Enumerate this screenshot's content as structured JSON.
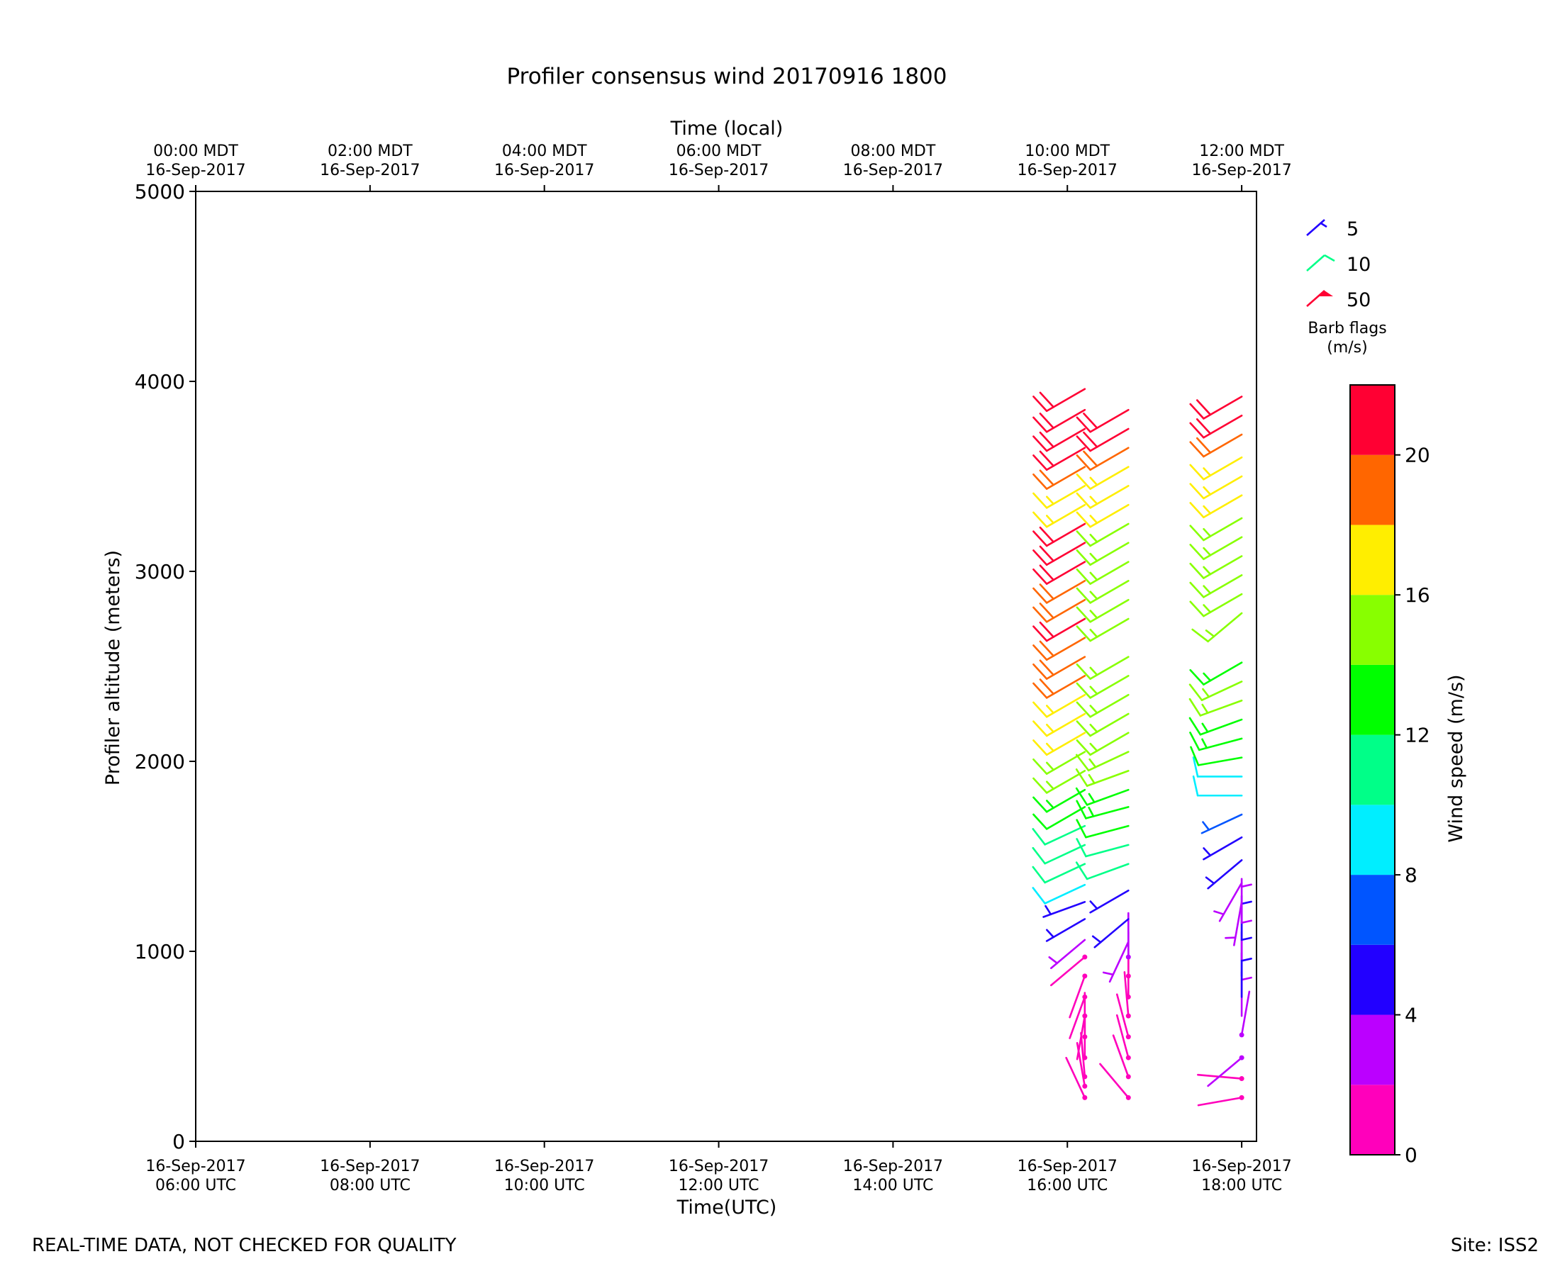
{
  "footer": {
    "note": "REAL-TIME DATA, NOT CHECKED FOR QUALITY",
    "site": "Site: ISS2"
  },
  "chart_data": {
    "type": "wind-barb",
    "title": "Profiler consensus wind 20170916 1800",
    "xlabel": "Time(UTC)",
    "xlabel_top": "Time (local)",
    "ylabel": "Profiler altitude (meters)",
    "ylim": [
      0,
      5000
    ],
    "yticks": [
      0,
      1000,
      2000,
      3000,
      4000,
      5000
    ],
    "xlim_hours_utc": [
      6.0,
      18.17
    ],
    "xticks": [
      {
        "hour": 6,
        "label": [
          "16-Sep-2017",
          "06:00 UTC"
        ],
        "label_top": [
          "00:00 MDT",
          "16-Sep-2017"
        ]
      },
      {
        "hour": 8,
        "label": [
          "16-Sep-2017",
          "08:00 UTC"
        ],
        "label_top": [
          "02:00 MDT",
          "16-Sep-2017"
        ]
      },
      {
        "hour": 10,
        "label": [
          "16-Sep-2017",
          "10:00 UTC"
        ],
        "label_top": [
          "04:00 MDT",
          "16-Sep-2017"
        ]
      },
      {
        "hour": 12,
        "label": [
          "16-Sep-2017",
          "12:00 UTC"
        ],
        "label_top": [
          "06:00 MDT",
          "16-Sep-2017"
        ]
      },
      {
        "hour": 14,
        "label": [
          "16-Sep-2017",
          "14:00 UTC"
        ],
        "label_top": [
          "08:00 MDT",
          "16-Sep-2017"
        ]
      },
      {
        "hour": 16,
        "label": [
          "16-Sep-2017",
          "16:00 UTC"
        ],
        "label_top": [
          "10:00 MDT",
          "16-Sep-2017"
        ]
      },
      {
        "hour": 18,
        "label": [
          "16-Sep-2017",
          "18:00 UTC"
        ],
        "label_top": [
          "12:00 MDT",
          "16-Sep-2017"
        ]
      }
    ],
    "colorbar": {
      "label": "Wind speed (m/s)",
      "range": [
        0,
        22
      ],
      "ticks": [
        0,
        4,
        8,
        12,
        16,
        20
      ],
      "bins": [
        {
          "from": 0,
          "to": 2,
          "color": "#ff00bb"
        },
        {
          "from": 2,
          "to": 4,
          "color": "#bb00ff"
        },
        {
          "from": 4,
          "to": 6,
          "color": "#2200ff"
        },
        {
          "from": 6,
          "to": 8,
          "color": "#0055ff"
        },
        {
          "from": 8,
          "to": 10,
          "color": "#00eeff"
        },
        {
          "from": 10,
          "to": 12,
          "color": "#00ff88"
        },
        {
          "from": 12,
          "to": 14,
          "color": "#00ff00"
        },
        {
          "from": 14,
          "to": 16,
          "color": "#88ff00"
        },
        {
          "from": 16,
          "to": 18,
          "color": "#ffee00"
        },
        {
          "from": 18,
          "to": 20,
          "color": "#ff6600"
        },
        {
          "from": 20,
          "to": 22,
          "color": "#ff0033"
        }
      ]
    },
    "legend": {
      "title": [
        "Barb flags",
        "(m/s)"
      ],
      "placement": "right",
      "entries": [
        {
          "label": "5",
          "color": "#2200ff",
          "kind": "half"
        },
        {
          "label": "10",
          "color": "#00ff88",
          "kind": "full"
        },
        {
          "label": "50",
          "color": "#ff0033",
          "kind": "flag"
        }
      ]
    },
    "series": [
      {
        "time_utc": 16.2,
        "barbs": [
          {
            "alt": 230,
            "speed": 1,
            "dir": 335
          },
          {
            "alt": 290,
            "speed": 1,
            "dir": 350
          },
          {
            "alt": 340,
            "speed": 1,
            "dir": 355
          },
          {
            "alt": 440,
            "speed": 1,
            "dir": 0
          },
          {
            "alt": 550,
            "speed": 1,
            "dir": 0
          },
          {
            "alt": 660,
            "speed": 1,
            "dir": 190
          },
          {
            "alt": 760,
            "speed": 1,
            "dir": 200
          },
          {
            "alt": 870,
            "speed": 1,
            "dir": 200
          },
          {
            "alt": 970,
            "speed": 1,
            "dir": 230
          },
          {
            "alt": 1060,
            "speed": 3,
            "dir": 230
          },
          {
            "alt": 1170,
            "speed": 4,
            "dir": 240
          },
          {
            "alt": 1260,
            "speed": 5,
            "dir": 250
          },
          {
            "alt": 1350,
            "speed": 8,
            "dir": 245
          },
          {
            "alt": 1460,
            "speed": 10,
            "dir": 245
          },
          {
            "alt": 1560,
            "speed": 10,
            "dir": 245
          },
          {
            "alt": 1660,
            "speed": 11,
            "dir": 245
          },
          {
            "alt": 1760,
            "speed": 12,
            "dir": 240
          },
          {
            "alt": 1850,
            "speed": 13,
            "dir": 240
          },
          {
            "alt": 1950,
            "speed": 14,
            "dir": 240
          },
          {
            "alt": 2050,
            "speed": 15,
            "dir": 240
          },
          {
            "alt": 2150,
            "speed": 16,
            "dir": 240
          },
          {
            "alt": 2250,
            "speed": 16,
            "dir": 240
          },
          {
            "alt": 2350,
            "speed": 17,
            "dir": 240
          },
          {
            "alt": 2450,
            "speed": 18,
            "dir": 240
          },
          {
            "alt": 2550,
            "speed": 19,
            "dir": 240
          },
          {
            "alt": 2650,
            "speed": 19,
            "dir": 240
          },
          {
            "alt": 2750,
            "speed": 20,
            "dir": 240
          },
          {
            "alt": 2850,
            "speed": 19,
            "dir": 240
          },
          {
            "alt": 2950,
            "speed": 19,
            "dir": 240
          },
          {
            "alt": 3050,
            "speed": 20,
            "dir": 240
          },
          {
            "alt": 3150,
            "speed": 20,
            "dir": 240
          },
          {
            "alt": 3250,
            "speed": 20,
            "dir": 240
          },
          {
            "alt": 3350,
            "speed": 17,
            "dir": 240
          },
          {
            "alt": 3450,
            "speed": 17,
            "dir": 240
          },
          {
            "alt": 3550,
            "speed": 19,
            "dir": 240
          },
          {
            "alt": 3650,
            "speed": 21,
            "dir": 240
          },
          {
            "alt": 3750,
            "speed": 21,
            "dir": 240
          },
          {
            "alt": 3850,
            "speed": 21,
            "dir": 240
          },
          {
            "alt": 3960,
            "speed": 21,
            "dir": 240
          }
        ]
      },
      {
        "time_utc": 16.7,
        "barbs": [
          {
            "alt": 230,
            "speed": 1,
            "dir": 320
          },
          {
            "alt": 340,
            "speed": 1,
            "dir": 340
          },
          {
            "alt": 440,
            "speed": 1,
            "dir": 345
          },
          {
            "alt": 550,
            "speed": 1,
            "dir": 345
          },
          {
            "alt": 660,
            "speed": 1,
            "dir": 355
          },
          {
            "alt": 760,
            "speed": 1,
            "dir": 0
          },
          {
            "alt": 870,
            "speed": 1,
            "dir": 0
          },
          {
            "alt": 970,
            "speed": 2,
            "dir": 0
          },
          {
            "alt": 1050,
            "speed": 3,
            "dir": 205
          },
          {
            "alt": 1170,
            "speed": 5,
            "dir": 230
          },
          {
            "alt": 1320,
            "speed": 5,
            "dir": 240
          },
          {
            "alt": 1460,
            "speed": 10,
            "dir": 250
          },
          {
            "alt": 1560,
            "speed": 11,
            "dir": 255
          },
          {
            "alt": 1660,
            "speed": 12,
            "dir": 255
          },
          {
            "alt": 1760,
            "speed": 13,
            "dir": 255
          },
          {
            "alt": 1850,
            "speed": 13,
            "dir": 250
          },
          {
            "alt": 1950,
            "speed": 14,
            "dir": 250
          },
          {
            "alt": 2050,
            "speed": 14,
            "dir": 245
          },
          {
            "alt": 2150,
            "speed": 14,
            "dir": 240
          },
          {
            "alt": 2250,
            "speed": 15,
            "dir": 240
          },
          {
            "alt": 2350,
            "speed": 15,
            "dir": 240
          },
          {
            "alt": 2450,
            "speed": 15,
            "dir": 240
          },
          {
            "alt": 2550,
            "speed": 15,
            "dir": 240
          },
          {
            "alt": 2750,
            "speed": 15,
            "dir": 240
          },
          {
            "alt": 2850,
            "speed": 15,
            "dir": 240
          },
          {
            "alt": 2950,
            "speed": 15,
            "dir": 240
          },
          {
            "alt": 3050,
            "speed": 15,
            "dir": 240
          },
          {
            "alt": 3150,
            "speed": 15,
            "dir": 240
          },
          {
            "alt": 3250,
            "speed": 15,
            "dir": 240
          },
          {
            "alt": 3350,
            "speed": 16,
            "dir": 240
          },
          {
            "alt": 3450,
            "speed": 17,
            "dir": 240
          },
          {
            "alt": 3550,
            "speed": 17,
            "dir": 240
          },
          {
            "alt": 3650,
            "speed": 19,
            "dir": 240
          },
          {
            "alt": 3750,
            "speed": 21,
            "dir": 240
          },
          {
            "alt": 3850,
            "speed": 21,
            "dir": 240
          }
        ]
      },
      {
        "time_utc": 18.0,
        "barbs": [
          {
            "alt": 230,
            "speed": 1,
            "dir": 260
          },
          {
            "alt": 330,
            "speed": 1,
            "dir": 275
          },
          {
            "alt": 440,
            "speed": 2,
            "dir": 230
          },
          {
            "alt": 560,
            "speed": 2,
            "dir": 10
          },
          {
            "alt": 660,
            "speed": 3,
            "dir": 0
          },
          {
            "alt": 760,
            "speed": 4,
            "dir": 0
          },
          {
            "alt": 870,
            "speed": 4,
            "dir": 0
          },
          {
            "alt": 960,
            "speed": 3,
            "dir": 0
          },
          {
            "alt": 1060,
            "speed": 4,
            "dir": 0
          },
          {
            "alt": 1150,
            "speed": 3,
            "dir": 0
          },
          {
            "alt": 1260,
            "speed": 3,
            "dir": 190
          },
          {
            "alt": 1360,
            "speed": 3,
            "dir": 210
          },
          {
            "alt": 1480,
            "speed": 4,
            "dir": 230
          },
          {
            "alt": 1600,
            "speed": 5,
            "dir": 240
          },
          {
            "alt": 1720,
            "speed": 7,
            "dir": 245
          },
          {
            "alt": 1820,
            "speed": 8,
            "dir": 270
          },
          {
            "alt": 1920,
            "speed": 9,
            "dir": 270
          },
          {
            "alt": 2020,
            "speed": 12,
            "dir": 260
          },
          {
            "alt": 2120,
            "speed": 13,
            "dir": 255
          },
          {
            "alt": 2220,
            "speed": 13,
            "dir": 250
          },
          {
            "alt": 2320,
            "speed": 14,
            "dir": 250
          },
          {
            "alt": 2420,
            "speed": 14,
            "dir": 245
          },
          {
            "alt": 2520,
            "speed": 13,
            "dir": 240
          },
          {
            "alt": 2780,
            "speed": 15,
            "dir": 230
          },
          {
            "alt": 2880,
            "speed": 15,
            "dir": 240
          },
          {
            "alt": 2980,
            "speed": 15,
            "dir": 240
          },
          {
            "alt": 3080,
            "speed": 15,
            "dir": 240
          },
          {
            "alt": 3180,
            "speed": 15,
            "dir": 240
          },
          {
            "alt": 3280,
            "speed": 15,
            "dir": 240
          },
          {
            "alt": 3400,
            "speed": 16,
            "dir": 240
          },
          {
            "alt": 3500,
            "speed": 17,
            "dir": 240
          },
          {
            "alt": 3600,
            "speed": 17,
            "dir": 240
          },
          {
            "alt": 3720,
            "speed": 19,
            "dir": 240
          },
          {
            "alt": 3820,
            "speed": 21,
            "dir": 240
          },
          {
            "alt": 3920,
            "speed": 21,
            "dir": 240
          }
        ]
      }
    ]
  }
}
